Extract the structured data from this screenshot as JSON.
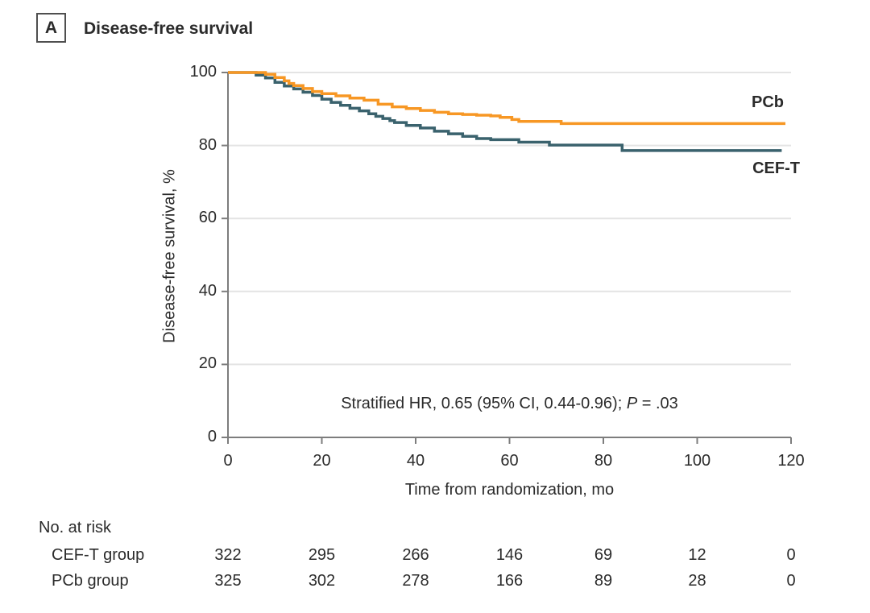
{
  "panel": {
    "label": "A",
    "title": "Disease-free survival"
  },
  "chart_data": {
    "type": "line",
    "variant": "kaplan-meier-step",
    "title": "Disease-free survival",
    "xlabel": "Time from randomization, mo",
    "ylabel": "Disease-free survival, %",
    "xlim": [
      0,
      120
    ],
    "ylim": [
      0,
      100
    ],
    "xticks": [
      0,
      20,
      40,
      60,
      80,
      100,
      120
    ],
    "yticks": [
      0,
      20,
      40,
      60,
      80,
      100
    ],
    "grid": "horizontal",
    "axis_color": "#7d7d7d",
    "grid_color": "#e4e4e4",
    "text_color": "#2b2b2b",
    "annotation": {
      "text": "Stratified HR, 0.65 (95% CI, 0.44-0.96); P = .03",
      "before_p": "Stratified HR, 0.65 (95% CI, 0.44-0.96); ",
      "p_symbol": "P",
      "after_p": " = .03"
    },
    "series": [
      {
        "name": "PCb",
        "color": "#F79724",
        "points": [
          [
            0,
            100
          ],
          [
            7,
            100
          ],
          [
            8,
            99.5
          ],
          [
            10,
            98.6
          ],
          [
            12,
            97.7
          ],
          [
            13,
            97.0
          ],
          [
            14,
            96.4
          ],
          [
            16,
            95.6
          ],
          [
            18,
            94.8
          ],
          [
            20,
            94.2
          ],
          [
            23,
            93.6
          ],
          [
            26,
            93.0
          ],
          [
            29,
            92.4
          ],
          [
            32,
            91.3
          ],
          [
            35,
            90.6
          ],
          [
            38,
            90.1
          ],
          [
            41,
            89.6
          ],
          [
            44,
            89.1
          ],
          [
            47,
            88.7
          ],
          [
            50,
            88.5
          ],
          [
            53,
            88.3
          ],
          [
            56,
            88.1
          ],
          [
            58,
            87.7
          ],
          [
            60.5,
            87.1
          ],
          [
            62,
            86.6
          ],
          [
            71,
            86.0
          ],
          [
            118.8,
            86.0
          ]
        ]
      },
      {
        "name": "CEF-T",
        "color": "#3A626D",
        "points": [
          [
            0,
            100
          ],
          [
            4.5,
            100
          ],
          [
            6,
            99.3
          ],
          [
            8,
            98.5
          ],
          [
            10,
            97.3
          ],
          [
            12,
            96.3
          ],
          [
            14,
            95.5
          ],
          [
            16,
            94.6
          ],
          [
            18,
            93.7
          ],
          [
            20,
            92.7
          ],
          [
            22,
            91.8
          ],
          [
            24,
            91.0
          ],
          [
            26,
            90.2
          ],
          [
            28,
            89.5
          ],
          [
            30,
            88.7
          ],
          [
            31.5,
            88.0
          ],
          [
            33,
            87.4
          ],
          [
            34.5,
            86.8
          ],
          [
            35.5,
            86.3
          ],
          [
            38,
            85.5
          ],
          [
            41,
            84.8
          ],
          [
            44,
            83.9
          ],
          [
            47,
            83.2
          ],
          [
            50,
            82.5
          ],
          [
            53,
            81.9
          ],
          [
            56,
            81.6
          ],
          [
            62,
            80.9
          ],
          [
            68.5,
            80.1
          ],
          [
            84,
            78.6
          ],
          [
            118,
            78.6
          ]
        ]
      }
    ],
    "at_risk": {
      "header": "No. at risk",
      "times": [
        0,
        20,
        40,
        60,
        80,
        100,
        120
      ],
      "rows": [
        {
          "label": "CEF-T group",
          "values": [
            322,
            295,
            266,
            146,
            69,
            12,
            0
          ]
        },
        {
          "label": "PCb group",
          "values": [
            325,
            302,
            278,
            166,
            89,
            28,
            0
          ]
        }
      ]
    }
  }
}
